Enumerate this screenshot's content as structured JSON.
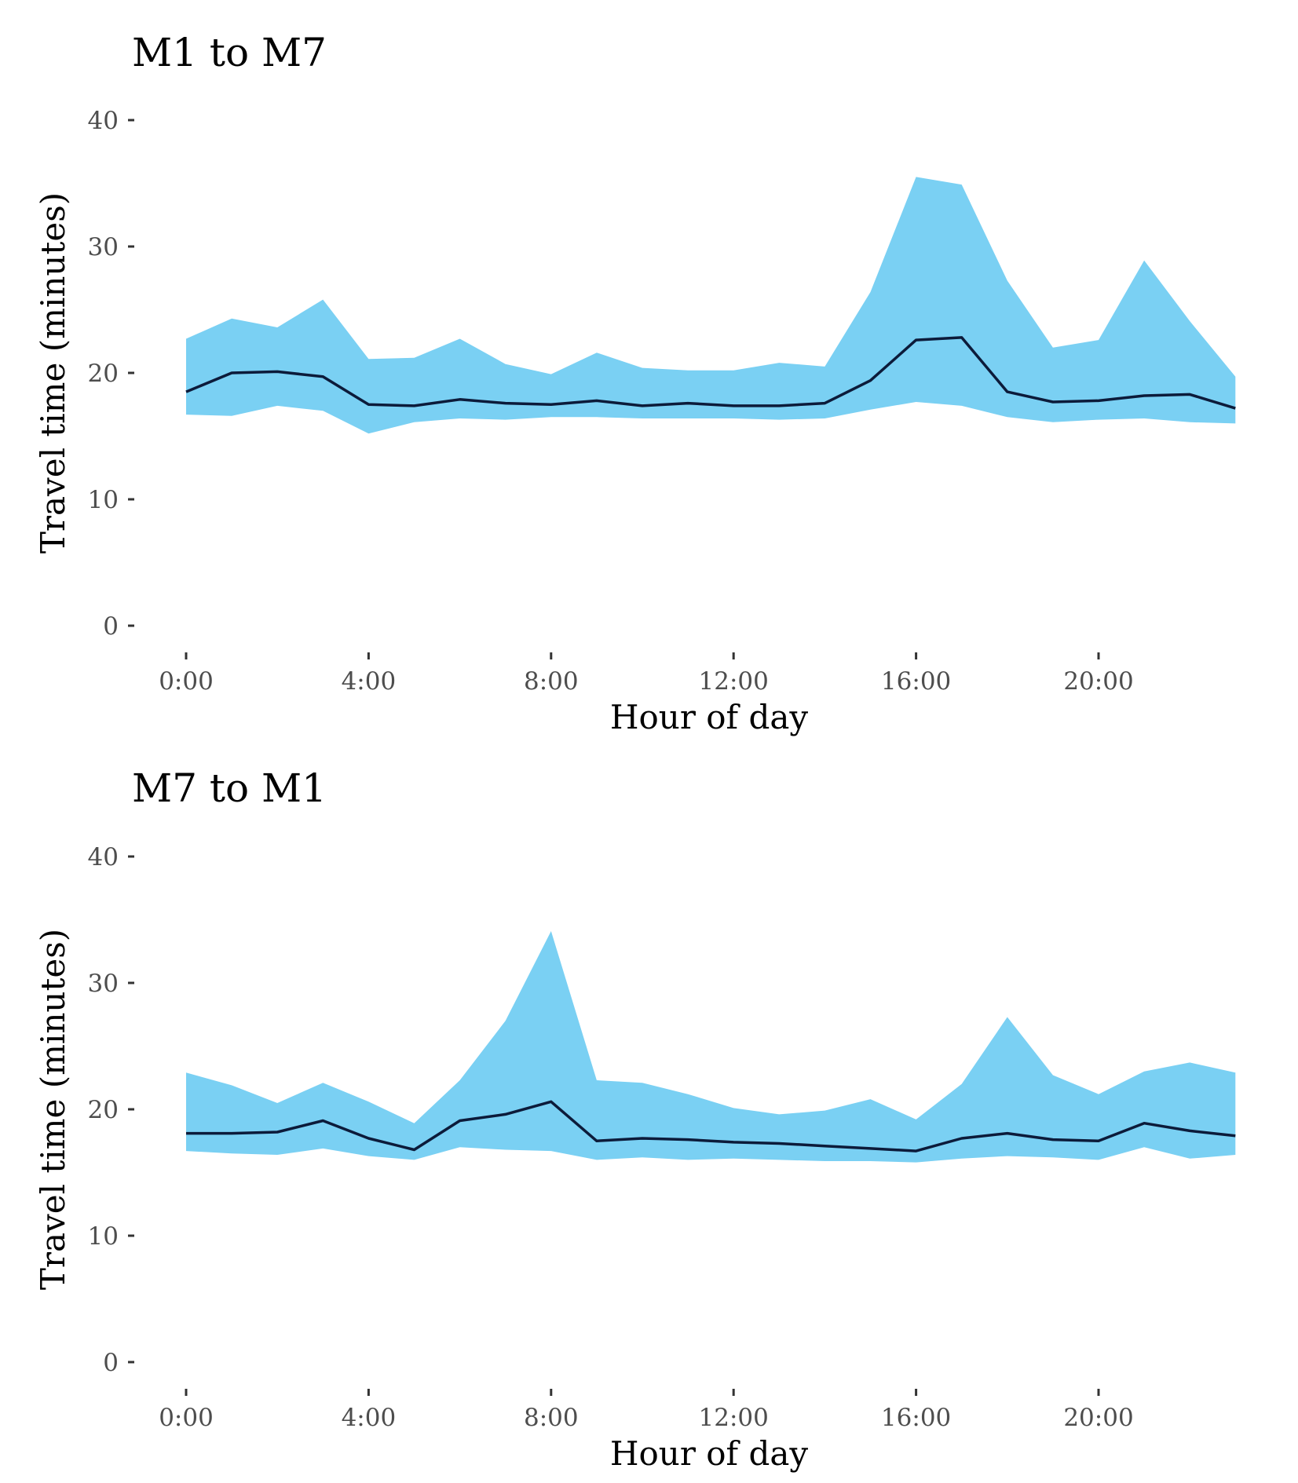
{
  "chart_data": [
    {
      "type": "area",
      "title": "M1 to M7",
      "xlabel": "Hour of day",
      "ylabel": "Travel time (minutes)",
      "x": [
        0,
        1,
        2,
        3,
        4,
        5,
        6,
        7,
        8,
        9,
        10,
        11,
        12,
        13,
        14,
        15,
        16,
        17,
        18,
        19,
        20,
        21,
        22,
        23
      ],
      "xticks": [
        0,
        4,
        8,
        12,
        16,
        20
      ],
      "xtick_labels": [
        "0:00",
        "4:00",
        "8:00",
        "12:00",
        "16:00",
        "20:00"
      ],
      "yticks": [
        0,
        10,
        20,
        30,
        40
      ],
      "ytick_labels": [
        "0",
        "10",
        "20",
        "30",
        "40"
      ],
      "ylim": [
        0,
        40
      ],
      "xlim": [
        0,
        23
      ],
      "grid": false,
      "colors": {
        "band": "#7ad0f3",
        "line": "#0c1b3a"
      },
      "series": [
        {
          "role": "upper",
          "values": [
            22.7,
            24.3,
            23.6,
            25.8,
            21.1,
            21.2,
            22.7,
            20.7,
            19.9,
            21.6,
            20.4,
            20.2,
            20.2,
            20.8,
            20.5,
            26.4,
            35.5,
            34.9,
            27.3,
            22.0,
            22.6,
            28.9,
            24.1,
            19.7
          ]
        },
        {
          "role": "median",
          "values": [
            18.5,
            20.0,
            20.1,
            19.7,
            17.5,
            17.4,
            17.9,
            17.6,
            17.5,
            17.8,
            17.4,
            17.6,
            17.4,
            17.4,
            17.6,
            19.4,
            22.6,
            22.8,
            18.5,
            17.7,
            17.8,
            18.2,
            18.3,
            17.2
          ]
        },
        {
          "role": "lower",
          "values": [
            16.7,
            16.6,
            17.4,
            17.0,
            15.2,
            16.1,
            16.4,
            16.3,
            16.5,
            16.5,
            16.4,
            16.4,
            16.4,
            16.3,
            16.4,
            17.1,
            17.7,
            17.4,
            16.5,
            16.1,
            16.3,
            16.4,
            16.1,
            16.0
          ]
        }
      ]
    },
    {
      "type": "area",
      "title": "M7 to M1",
      "xlabel": "Hour of day",
      "ylabel": "Travel time (minutes)",
      "x": [
        0,
        1,
        2,
        3,
        4,
        5,
        6,
        7,
        8,
        9,
        10,
        11,
        12,
        13,
        14,
        15,
        16,
        17,
        18,
        19,
        20,
        21,
        22,
        23
      ],
      "xticks": [
        0,
        4,
        8,
        12,
        16,
        20
      ],
      "xtick_labels": [
        "0:00",
        "4:00",
        "8:00",
        "12:00",
        "16:00",
        "20:00"
      ],
      "yticks": [
        0,
        10,
        20,
        30,
        40
      ],
      "ytick_labels": [
        "0",
        "10",
        "20",
        "30",
        "40"
      ],
      "ylim": [
        0,
        40
      ],
      "xlim": [
        0,
        23
      ],
      "grid": false,
      "colors": {
        "band": "#7ad0f3",
        "line": "#0c1b3a"
      },
      "series": [
        {
          "role": "upper",
          "values": [
            22.9,
            21.9,
            20.5,
            22.1,
            20.6,
            18.9,
            22.3,
            27.0,
            34.1,
            22.3,
            22.1,
            21.2,
            20.1,
            19.6,
            19.9,
            20.8,
            19.2,
            22.0,
            27.3,
            22.7,
            21.2,
            23.0,
            23.7,
            22.9
          ]
        },
        {
          "role": "median",
          "values": [
            18.1,
            18.1,
            18.2,
            19.1,
            17.7,
            16.8,
            19.1,
            19.6,
            20.6,
            17.5,
            17.7,
            17.6,
            17.4,
            17.3,
            17.1,
            16.9,
            16.7,
            17.7,
            18.1,
            17.6,
            17.5,
            18.9,
            18.3,
            17.9
          ]
        },
        {
          "role": "lower",
          "values": [
            16.7,
            16.5,
            16.4,
            16.9,
            16.3,
            16.0,
            17.0,
            16.8,
            16.7,
            16.0,
            16.2,
            16.0,
            16.1,
            16.0,
            15.9,
            15.9,
            15.8,
            16.1,
            16.3,
            16.2,
            16.0,
            17.0,
            16.1,
            16.4
          ]
        }
      ]
    }
  ]
}
